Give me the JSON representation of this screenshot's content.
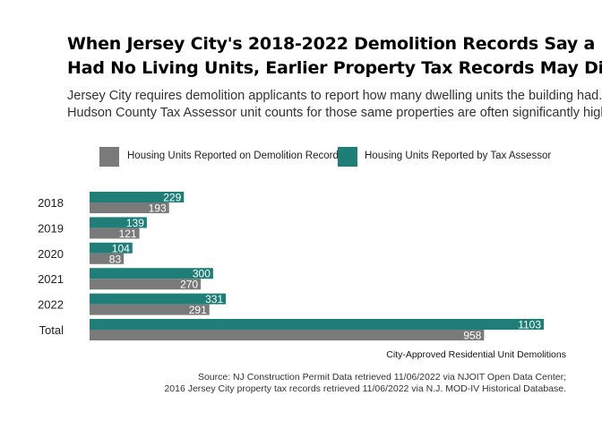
{
  "title_line1": "When Jersey City's 2018-2022 Demolition Records Say a Building",
  "title_line2": "Had No Living Units, Earlier Property Tax Records May Disagree",
  "subtitle_line1": "Jersey City requires demolition applicants to report how many dwelling units the building had.",
  "subtitle_line2": "Hudson County Tax Assessor unit counts for those same properties are often significantly higher.",
  "caption": "City-Approved Residential Unit Demolitions",
  "source_line1": "Source: NJ Construction Permit Data retrieved 11/06/2022 via NJOIT Open Data Center;",
  "source_line2": "2016 Jersey City property tax records retrieved 11/06/2022 via N.J. MOD-IV Historical Database.",
  "colors": {
    "demolition": "#7a7a7a",
    "assessor": "#1f7f78"
  },
  "chart_data": {
    "type": "bar",
    "orientation": "horizontal",
    "categories": [
      "2018",
      "2019",
      "2020",
      "2021",
      "2022",
      "Total"
    ],
    "series": [
      {
        "name": "Housing Units Reported on Demolition Records",
        "values": [
          193,
          121,
          83,
          270,
          291,
          958
        ]
      },
      {
        "name": "Housing Units Reported by Tax Assessor",
        "values": [
          229,
          139,
          104,
          300,
          331,
          1103
        ]
      }
    ],
    "xlabel": "City-Approved Residential Unit Demolitions",
    "xlim": [
      0,
      1200
    ],
    "legend": "top",
    "grid": false
  }
}
